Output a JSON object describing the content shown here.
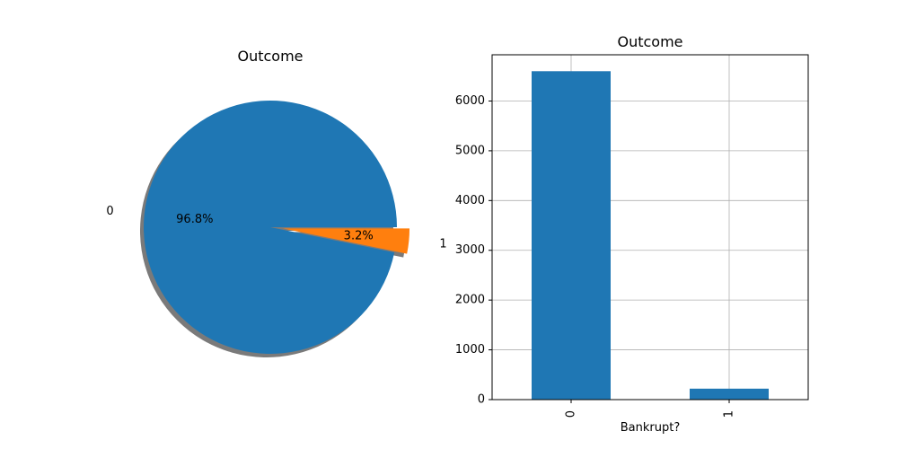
{
  "chart_data": [
    {
      "type": "pie",
      "title": "Outcome",
      "labels": [
        "0",
        "1"
      ],
      "values": [
        96.8,
        3.2
      ],
      "autopct": [
        "96.8%",
        "3.2%"
      ],
      "colors": [
        "#1f77b4",
        "#ff7f0e"
      ],
      "explode": [
        0,
        0.1
      ],
      "shadow": true
    },
    {
      "type": "bar",
      "title": "Outcome",
      "categories": [
        "0",
        "1"
      ],
      "values": [
        6599,
        220
      ],
      "xlabel": "Bankrupt?",
      "ylabel": "",
      "ylim": [
        0,
        6929
      ],
      "yticks": [
        0,
        1000,
        2000,
        3000,
        4000,
        5000,
        6000
      ],
      "grid": true,
      "color": "#1f77b4"
    }
  ]
}
